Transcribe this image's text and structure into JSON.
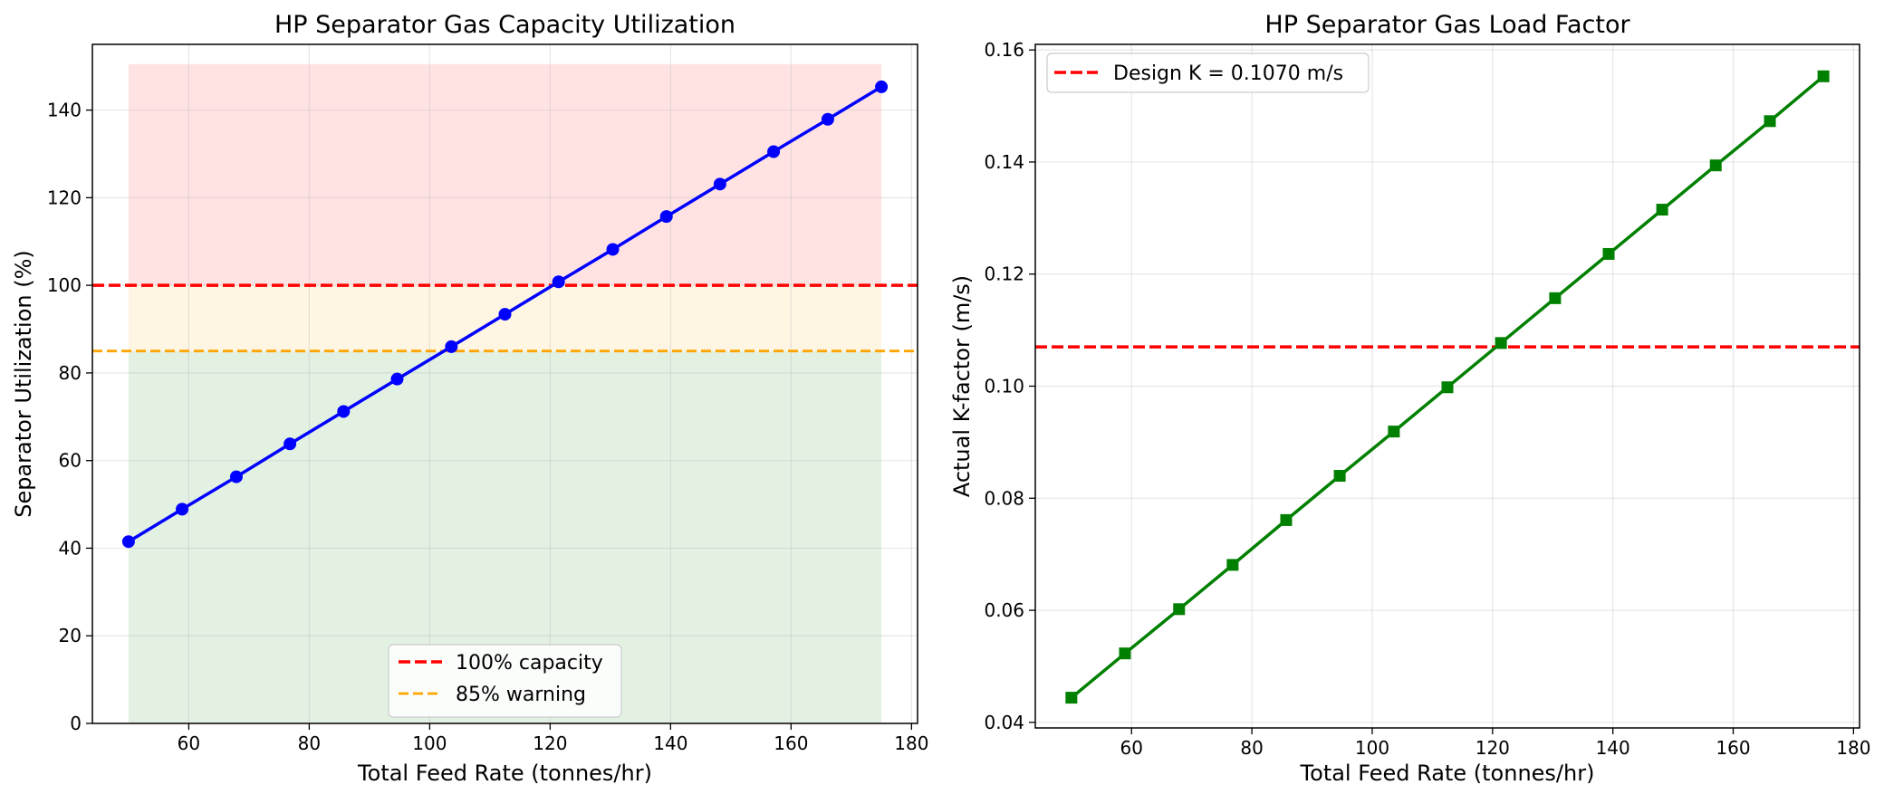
{
  "chart_data": [
    {
      "type": "line",
      "title": "HP Separator Gas Capacity Utilization",
      "xlabel": "Total Feed Rate (tonnes/hr)",
      "ylabel": "Separator Utilization (%)",
      "xlim": [
        44,
        181
      ],
      "ylim": [
        0,
        155
      ],
      "xticks": [
        60,
        80,
        100,
        120,
        140,
        160,
        180
      ],
      "yticks": [
        0,
        20,
        40,
        60,
        80,
        100,
        120,
        140
      ],
      "grid": true,
      "legend_position": "lower-center",
      "x": [
        50,
        58.9,
        67.9,
        76.8,
        85.7,
        94.6,
        103.6,
        112.5,
        121.4,
        130.4,
        139.3,
        148.2,
        157.1,
        166.1,
        175
      ],
      "series": [
        {
          "values": [
            41.5,
            48.9,
            56.3,
            63.8,
            71.2,
            78.6,
            86.0,
            93.4,
            100.8,
            108.2,
            115.7,
            123.1,
            130.5,
            137.9,
            145.3
          ],
          "color": "#0000ff",
          "marker": "circle"
        }
      ],
      "reference_lines": [
        {
          "name": "100% capacity",
          "y": 100,
          "color": "#ff0000",
          "style": "dashed"
        },
        {
          "name": "85% warning",
          "y": 85,
          "color": "#ffa500",
          "style": "dashed"
        }
      ],
      "shaded_zones": [
        {
          "y_from": 0,
          "y_to": 85,
          "color": "#008000"
        },
        {
          "y_from": 85,
          "y_to": 100,
          "color": "#ffa500"
        },
        {
          "y_from": 100,
          "y_to": 150.5,
          "color": "#ff0000"
        }
      ]
    },
    {
      "type": "line",
      "title": "HP Separator Gas Load Factor",
      "xlabel": "Total Feed Rate (tonnes/hr)",
      "ylabel": "Actual K-factor (m/s)",
      "xlim": [
        44,
        181
      ],
      "ylim": [
        0.039,
        0.161
      ],
      "xticks": [
        60,
        80,
        100,
        120,
        140,
        160,
        180
      ],
      "yticks": [
        "0.04",
        "0.06",
        "0.08",
        "0.10",
        "0.12",
        "0.14",
        "0.16"
      ],
      "grid": true,
      "legend_position": "top-left",
      "x": [
        50,
        58.9,
        67.9,
        76.8,
        85.7,
        94.6,
        103.6,
        112.5,
        121.4,
        130.4,
        139.3,
        148.2,
        157.1,
        166.1,
        175
      ],
      "series": [
        {
          "values": [
            0.0444,
            0.0523,
            0.0602,
            0.0681,
            0.0761,
            0.084,
            0.0919,
            0.0998,
            0.1077,
            0.1157,
            0.1236,
            0.1315,
            0.1394,
            0.1473,
            0.1553
          ],
          "color": "#008000",
          "marker": "square"
        }
      ],
      "reference_lines": [
        {
          "name": "Design K = 0.1070 m/s",
          "y": 0.107,
          "color": "#ff0000",
          "style": "dashed"
        }
      ]
    }
  ]
}
